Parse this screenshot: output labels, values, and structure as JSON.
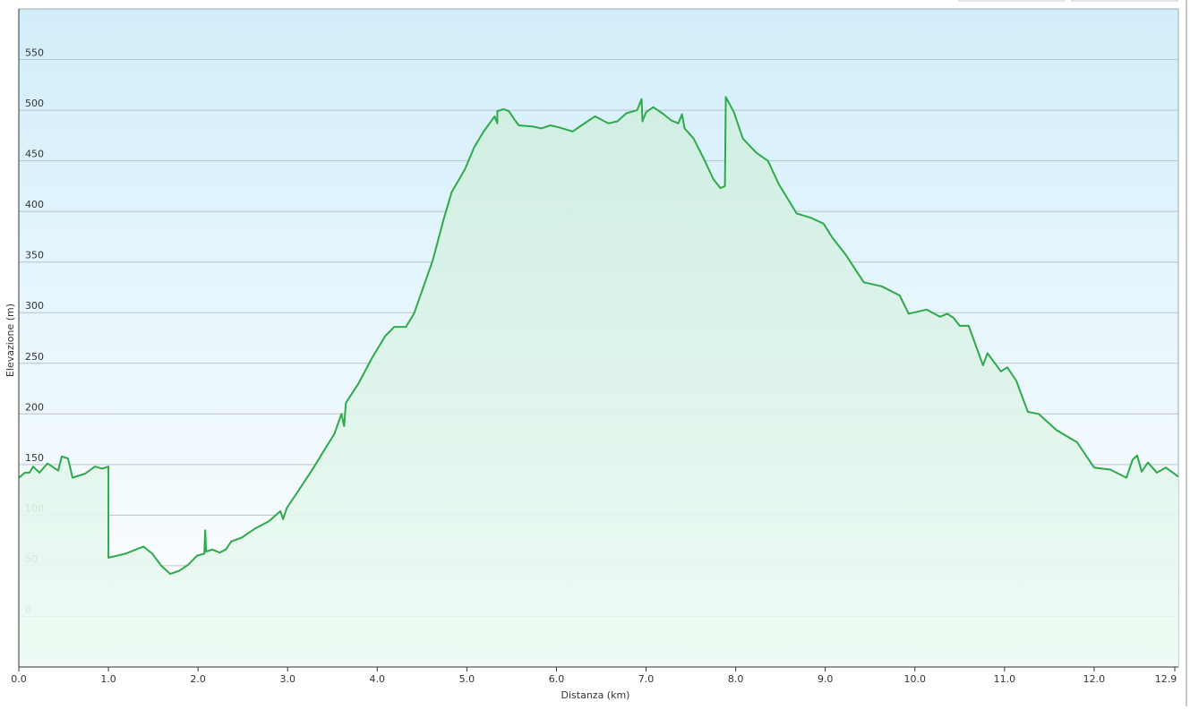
{
  "chart_data": {
    "type": "area",
    "color": "#2eaa4a",
    "x_label": "Distanza  (km)",
    "y_label": "Elevazione (m)",
    "xlim": [
      0,
      12.94
    ],
    "ylim": [
      -50,
      600
    ],
    "grid": true,
    "xticks": [
      {
        "value": 0,
        "label": "0.0"
      },
      {
        "value": 1,
        "label": "1.0"
      },
      {
        "value": 2,
        "label": "2.0"
      },
      {
        "value": 3,
        "label": "3.0"
      },
      {
        "value": 4,
        "label": "4.0"
      },
      {
        "value": 5,
        "label": "5.0"
      },
      {
        "value": 6,
        "label": "6.0"
      },
      {
        "value": 7,
        "label": "7.0"
      },
      {
        "value": 8,
        "label": "8.0"
      },
      {
        "value": 9,
        "label": "9.0"
      },
      {
        "value": 10,
        "label": "10.0"
      },
      {
        "value": 11,
        "label": "11.0"
      },
      {
        "value": 12,
        "label": "12.0"
      },
      {
        "value": 12.9,
        "label": "12.9"
      }
    ],
    "yticks": [
      0,
      50,
      100,
      150,
      200,
      250,
      300,
      350,
      400,
      450,
      500,
      550
    ],
    "x": [
      0,
      0.07,
      0.12,
      0.16,
      0.23,
      0.32,
      0.44,
      0.48,
      0.55,
      0.6,
      0.74,
      0.85,
      0.93,
      1.0,
      1.0,
      1.19,
      1.39,
      1.49,
      1.59,
      1.69,
      1.79,
      1.89,
      1.99,
      2.07,
      2.08,
      2.09,
      2.16,
      2.24,
      2.31,
      2.37,
      2.49,
      2.64,
      2.79,
      2.92,
      2.95,
      2.99,
      3.12,
      3.29,
      3.42,
      3.52,
      3.6,
      3.63,
      3.65,
      3.79,
      3.94,
      4.09,
      4.19,
      4.32,
      4.41,
      4.51,
      4.62,
      4.74,
      4.83,
      4.98,
      5.08,
      5.18,
      5.31,
      5.34,
      5.34,
      5.41,
      5.47,
      5.53,
      5.58,
      5.73,
      5.83,
      5.93,
      6.03,
      6.18,
      6.28,
      6.43,
      6.58,
      6.68,
      6.78,
      6.9,
      6.95,
      6.96,
      7.0,
      7.08,
      7.18,
      7.28,
      7.36,
      7.4,
      7.43,
      7.53,
      7.65,
      7.75,
      7.83,
      7.88,
      7.89,
      7.98,
      8.08,
      8.23,
      8.36,
      8.48,
      8.68,
      8.83,
      8.98,
      9.08,
      9.23,
      9.43,
      9.63,
      9.83,
      9.93,
      10.13,
      10.28,
      10.36,
      10.43,
      10.5,
      10.6,
      10.76,
      10.81,
      10.96,
      11.03,
      11.13,
      11.26,
      11.38,
      11.58,
      11.81,
      12.0,
      12.18,
      12.36,
      12.43,
      12.48,
      12.53,
      12.6,
      12.7,
      12.8,
      12.94
    ],
    "values": [
      137,
      142,
      142,
      148,
      142,
      151,
      144,
      158,
      156,
      137,
      141,
      148,
      146,
      148,
      58,
      62,
      69,
      62,
      50,
      42,
      45,
      51,
      60,
      62,
      85,
      64,
      66,
      63,
      66,
      74,
      78,
      87,
      94,
      104,
      96,
      107,
      124,
      147,
      166,
      180,
      200,
      188,
      211,
      230,
      255,
      277,
      286,
      286,
      299,
      324,
      352,
      392,
      419,
      442,
      463,
      478,
      494,
      487,
      499,
      501,
      499,
      491,
      485,
      484,
      482,
      485,
      483,
      479,
      485,
      494,
      487,
      489,
      497,
      500,
      511,
      489,
      498,
      503,
      497,
      490,
      487,
      496,
      482,
      472,
      451,
      432,
      423,
      425,
      513,
      498,
      472,
      458,
      450,
      427,
      398,
      394,
      388,
      374,
      357,
      330,
      326,
      317,
      299,
      303,
      296,
      299,
      295,
      287,
      287,
      248,
      260,
      242,
      246,
      233,
      202,
      200,
      184,
      172,
      147,
      145,
      137,
      155,
      159,
      143,
      152,
      142,
      147,
      138
    ]
  }
}
